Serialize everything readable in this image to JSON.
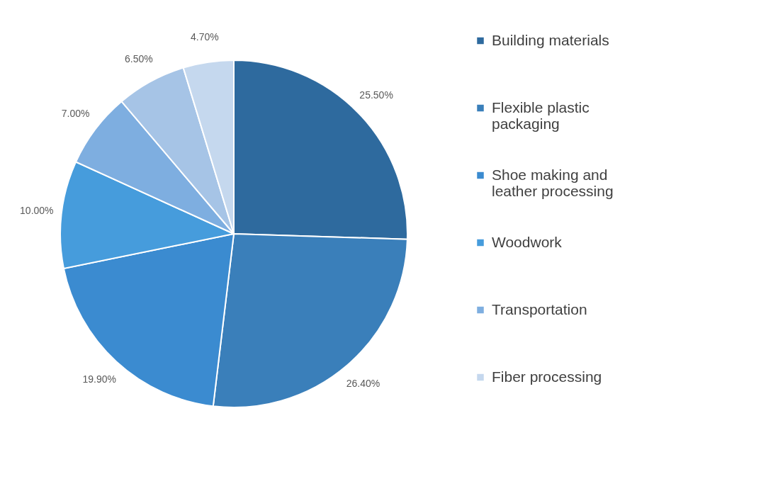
{
  "chart_data": {
    "type": "pie",
    "categories": [
      "Building materials",
      "Flexible plastic packaging",
      "Shoe making and leather processing",
      "Woodwork",
      "Transportation",
      null,
      "Fiber processing"
    ],
    "values": [
      25.5,
      26.4,
      19.9,
      10.0,
      7.0,
      6.5,
      4.7
    ],
    "value_labels": [
      "25.50%",
      "26.40%",
      "19.90%",
      "10.00%",
      "7.00%",
      "6.50%",
      "4.70%"
    ],
    "colors": [
      "#2e6a9e",
      "#3a7fba",
      "#3b8bd0",
      "#469cdc",
      "#7eaee0",
      "#a6c4e6",
      "#c5d8ee"
    ],
    "legend": "right"
  }
}
